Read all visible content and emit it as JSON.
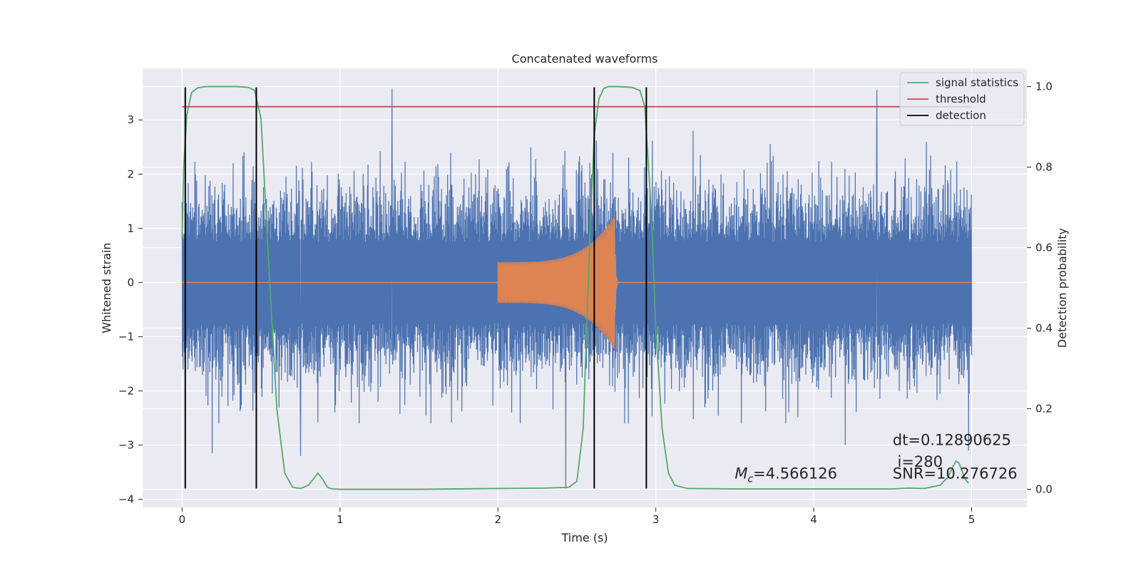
{
  "chart_data": {
    "type": "line",
    "title": "Concatenated waveforms",
    "xlabel": "Time (s)",
    "ylabel": "Whitened strain",
    "y2label": "Detection probability",
    "xlim": [
      -0.25,
      5.35
    ],
    "ylim": [
      -4.15,
      3.95
    ],
    "y2lim": [
      -0.045,
      1.045
    ],
    "x_ticks": [
      0,
      1,
      2,
      3,
      4,
      5
    ],
    "x_tick_labels": [
      "0",
      "1",
      "2",
      "3",
      "4",
      "5"
    ],
    "y_ticks": [
      -4,
      -3,
      -2,
      -1,
      0,
      1,
      2,
      3
    ],
    "y_tick_labels": [
      "−4",
      "−3",
      "−2",
      "−1",
      "0",
      "1",
      "2",
      "3"
    ],
    "y2_ticks": [
      0.0,
      0.2,
      0.4,
      0.6,
      0.8,
      1.0
    ],
    "y2_tick_labels": [
      "0.0",
      "0.2",
      "0.4",
      "0.6",
      "0.8",
      "1.0"
    ],
    "grid": true,
    "legend_position": "top-right",
    "legend": [
      {
        "label": "signal statistics",
        "color": "#55a868"
      },
      {
        "label": "threshold",
        "color": "#c44e52"
      },
      {
        "label": "detection",
        "color": "#000000"
      }
    ],
    "series": [
      {
        "color": "#4c72b0",
        "axis": "left",
        "kind": "noise",
        "x_range": [
          0,
          5
        ],
        "envelope_pos": 2.3,
        "envelope_neg": -2.3,
        "peaks": [
          {
            "x": 1.33,
            "y": 3.58
          },
          {
            "x": 4.4,
            "y": 3.55
          },
          {
            "x": 0.75,
            "y": -3.2
          },
          {
            "x": 0.19,
            "y": -3.15
          },
          {
            "x": 2.43,
            "y": -3.8
          },
          {
            "x": 4.98,
            "y": -3.1
          },
          {
            "x": 4.2,
            "y": -3.0
          }
        ]
      },
      {
        "color": "#dd8452",
        "axis": "left",
        "kind": "chirp",
        "x_start": 2.0,
        "x_merger": 2.74,
        "x_end": 2.76,
        "amp_start": 0.38,
        "amp_peak": 1.25,
        "baseline_x_range": [
          0,
          5
        ]
      },
      {
        "name": "signal statistics",
        "color": "#55a868",
        "axis": "right",
        "x": [
          0.0,
          0.01,
          0.03,
          0.06,
          0.1,
          0.15,
          0.25,
          0.35,
          0.42,
          0.46,
          0.5,
          0.55,
          0.6,
          0.65,
          0.7,
          0.75,
          0.8,
          0.83,
          0.86,
          0.89,
          0.92,
          0.95,
          1.0,
          1.5,
          2.0,
          2.3,
          2.45,
          2.5,
          2.54,
          2.58,
          2.61,
          2.64,
          2.67,
          2.7,
          2.75,
          2.85,
          2.9,
          2.93,
          2.97,
          3.0,
          3.04,
          3.08,
          3.12,
          3.2,
          3.5,
          4.0,
          4.5,
          4.6,
          4.7,
          4.8,
          4.85,
          4.88,
          4.9,
          4.92,
          4.94,
          4.96,
          4.98
        ],
        "values": [
          0.62,
          0.8,
          0.93,
          0.985,
          0.997,
          1.0,
          1.0,
          1.0,
          0.998,
          0.99,
          0.92,
          0.55,
          0.2,
          0.04,
          0.005,
          0.002,
          0.01,
          0.025,
          0.04,
          0.025,
          0.005,
          0.001,
          0.0,
          0.0,
          0.002,
          0.003,
          0.005,
          0.02,
          0.15,
          0.6,
          0.88,
          0.97,
          0.995,
          1.0,
          1.0,
          0.998,
          0.99,
          0.95,
          0.7,
          0.4,
          0.15,
          0.04,
          0.01,
          0.002,
          0.001,
          0.001,
          0.001,
          0.003,
          0.002,
          0.01,
          0.03,
          0.055,
          0.07,
          0.065,
          0.045,
          0.025,
          0.015
        ]
      },
      {
        "name": "threshold",
        "color": "#c44e52",
        "axis": "right",
        "x": [
          0,
          5
        ],
        "values": [
          0.95,
          0.95
        ]
      }
    ],
    "detections": [
      0.02,
      0.47,
      2.61,
      2.94
    ],
    "detection_ylim": [
      -3.8,
      3.6
    ],
    "annotations": [
      {
        "text_main": "M",
        "text_sub": "c",
        "text_rest": "=4.566126",
        "x": 3.5,
        "y": -3.62
      },
      {
        "text": "dt=0.12890625",
        "x": 4.5,
        "y": -3.0
      },
      {
        "text": " i=280",
        "x": 4.5,
        "y": -3.4
      },
      {
        "text": "SNR=10.276726",
        "x": 4.5,
        "y": -3.62
      }
    ]
  }
}
